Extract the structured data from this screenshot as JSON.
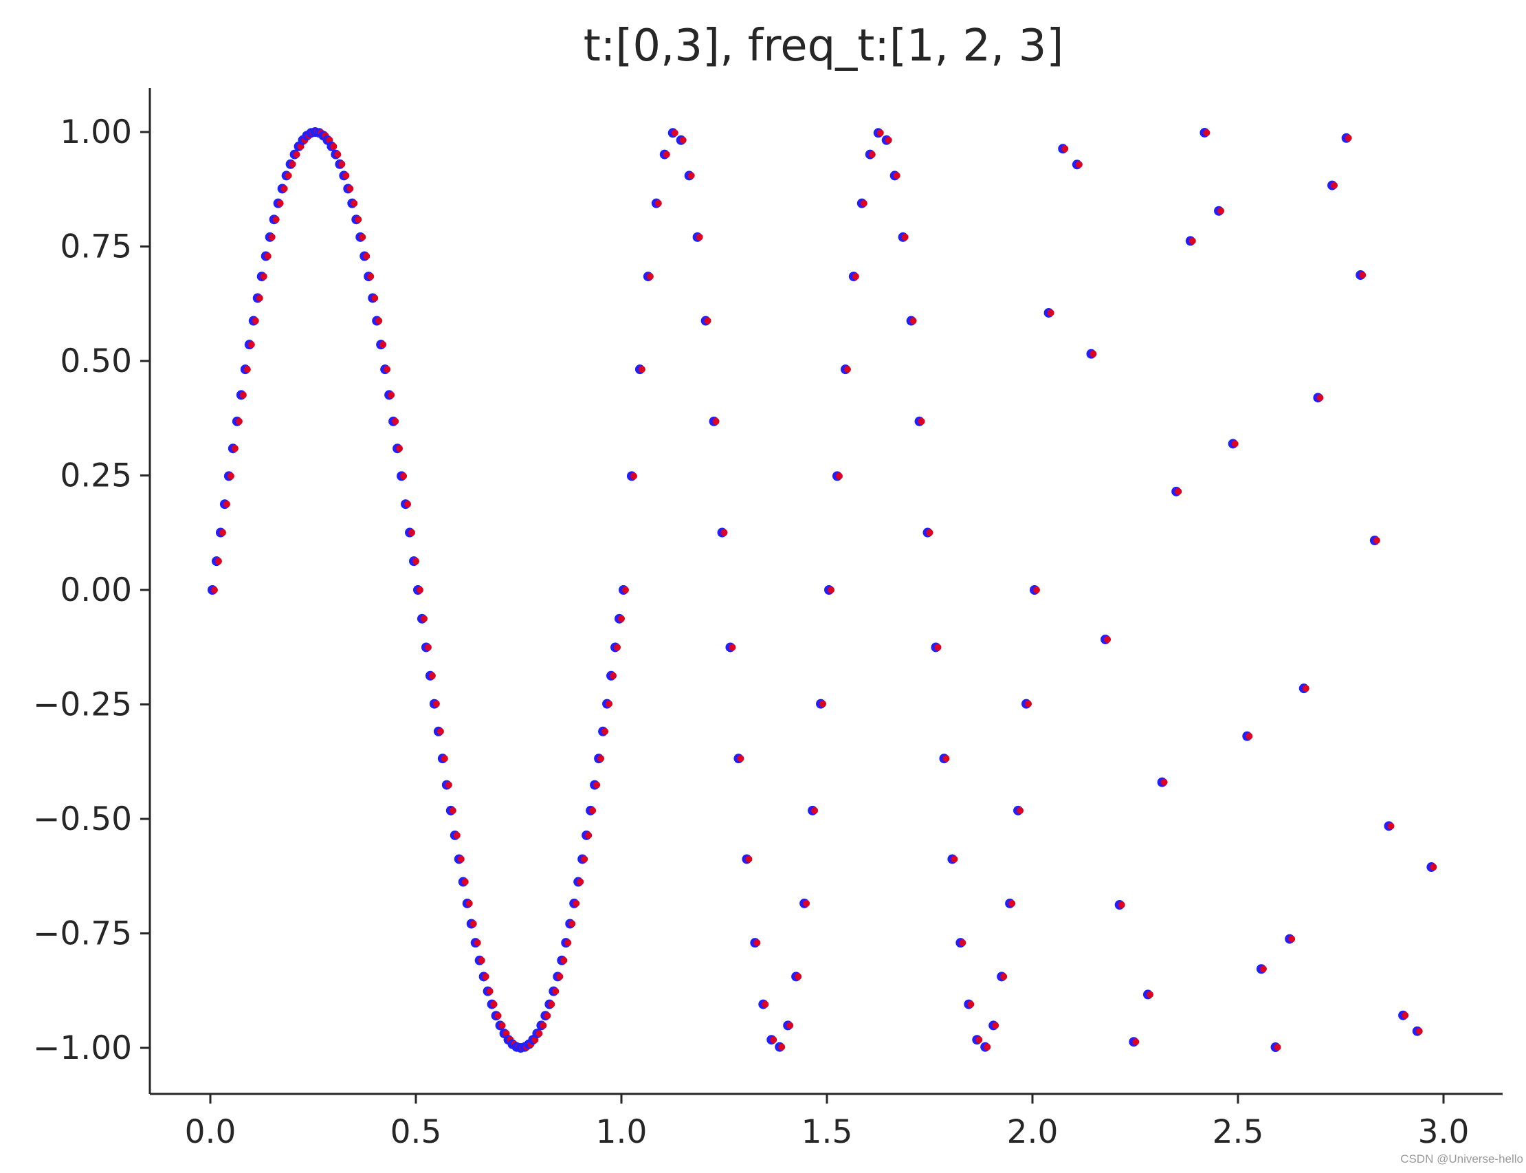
{
  "chart_data": {
    "type": "scatter",
    "title": "t:[0,3], freq_t:[1, 2, 3]",
    "xlabel": "",
    "ylabel": "",
    "xlim": [
      -0.15,
      3.15
    ],
    "ylim": [
      -1.1,
      1.1
    ],
    "x_ticks": [
      0.0,
      0.5,
      1.0,
      1.5,
      2.0,
      2.5,
      3.0
    ],
    "x_tick_labels": [
      "0.0",
      "0.5",
      "1.0",
      "1.5",
      "2.0",
      "2.5",
      "3.0"
    ],
    "y_ticks": [
      1.0,
      0.75,
      0.5,
      0.25,
      0.0,
      -0.25,
      -0.5,
      -0.75,
      -1.0
    ],
    "y_tick_labels": [
      "1.00",
      "0.75",
      "0.50",
      "0.25",
      "0.00",
      "−0.25",
      "−0.50",
      "−0.75",
      "−1.00"
    ],
    "grid": false,
    "legend": "none",
    "signal": {
      "function": "sin(2*pi*f*t)",
      "segments": [
        {
          "t_start": 0.0,
          "t_end": 1.0,
          "freq": 1,
          "points": 100
        },
        {
          "t_start": 1.0,
          "t_end": 2.0,
          "freq": 2,
          "points": 50
        },
        {
          "t_start": 2.0,
          "t_end": 3.0,
          "freq": 3,
          "points": 29
        }
      ]
    },
    "series": [
      {
        "color": "#1f1fff",
        "marker": "circle"
      },
      {
        "color": "#dd0022",
        "marker": "circle"
      }
    ]
  },
  "watermark": "CSDN @Universe-hello"
}
